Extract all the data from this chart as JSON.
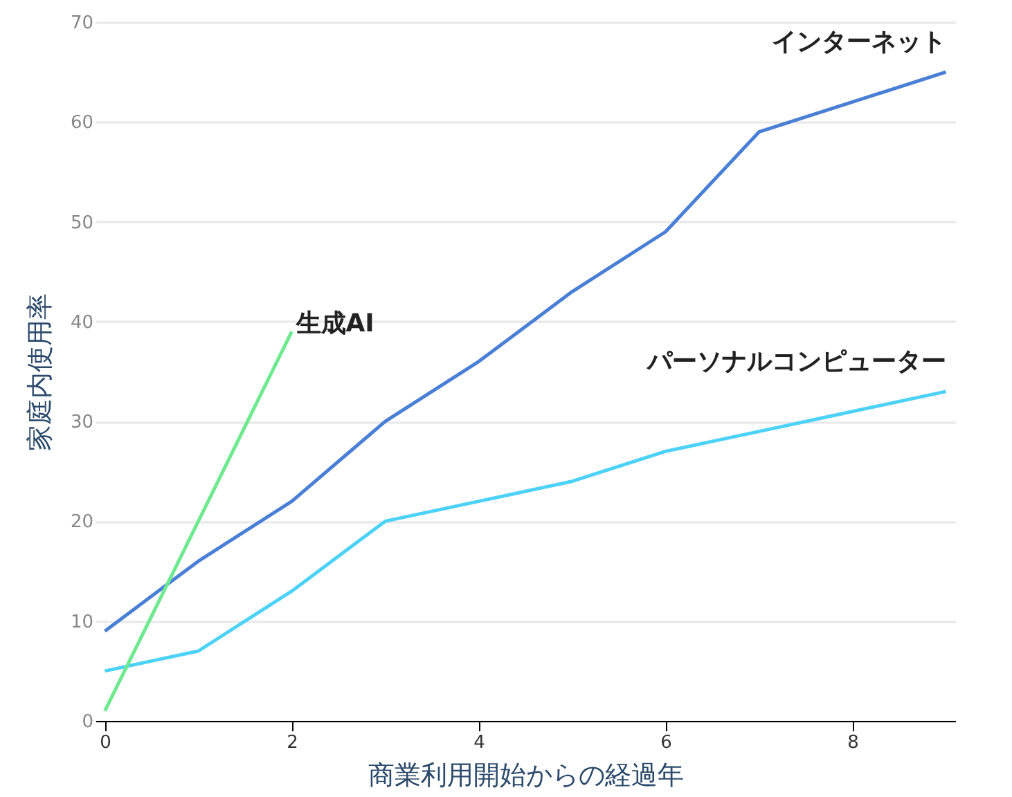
{
  "chart_data": {
    "type": "line",
    "xlabel": "商業利用開始からの経過年",
    "ylabel": "家庭内使用率",
    "x": [
      0,
      1,
      2,
      3,
      4,
      5,
      6,
      7,
      8,
      9
    ],
    "series": [
      {
        "name": "インターネット",
        "color": "#4a7fd6",
        "values": [
          9,
          16,
          22,
          30,
          36,
          43,
          49,
          59,
          62,
          65
        ]
      },
      {
        "name": "パーソナルコンピューター",
        "color": "#4dd2f7",
        "values": [
          5,
          7,
          13,
          20,
          22,
          24,
          27,
          29,
          31,
          33
        ]
      },
      {
        "name": "生成AI",
        "color": "#6ee98f",
        "x": [
          0,
          2
        ],
        "values": [
          1,
          39
        ]
      }
    ],
    "xlim": [
      -0.1,
      9.1
    ],
    "xticks": [
      0,
      2,
      4,
      6,
      8
    ],
    "ylim": [
      0,
      70
    ],
    "yticks": [
      0,
      10,
      20,
      30,
      40,
      50,
      60,
      70
    ],
    "grid": "y",
    "marker": "none",
    "line_style": "solid"
  }
}
